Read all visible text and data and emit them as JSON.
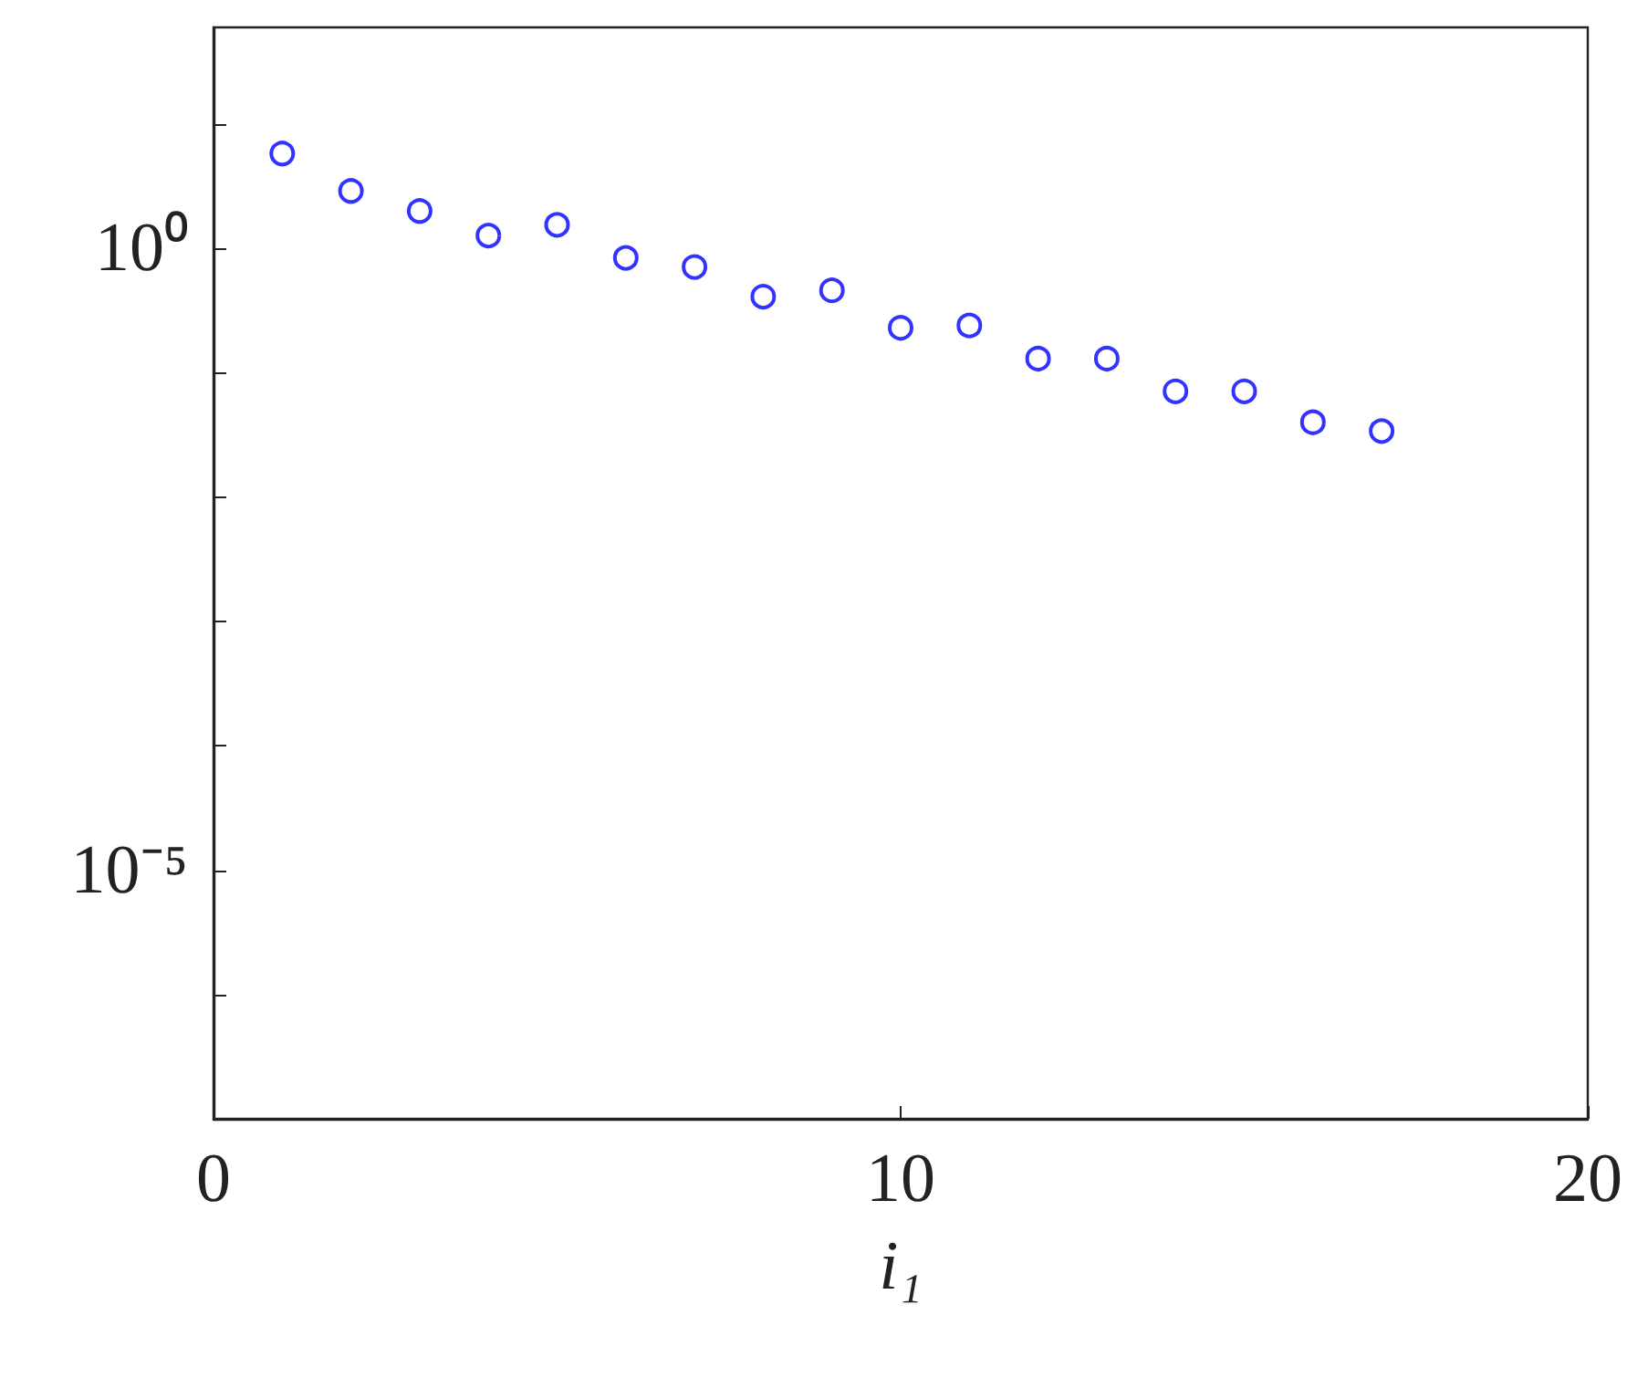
{
  "chart_data": {
    "type": "scatter",
    "xlabel": "i₁",
    "x": [
      1,
      2,
      3,
      4,
      5,
      6,
      7,
      8,
      9,
      10,
      11,
      12,
      13,
      14,
      15,
      16,
      17
    ],
    "series": [
      {
        "color": "#0000ff",
        "values": [
          5.8,
          2.9,
          2.0,
          1.27,
          1.55,
          0.84,
          0.71,
          0.41,
          0.46,
          0.23,
          0.24,
          0.13,
          0.13,
          0.071,
          0.071,
          0.04,
          0.034
        ]
      }
    ],
    "log": "y",
    "xlim": [
      0,
      20
    ],
    "xticks": [
      0,
      10,
      20
    ],
    "ylim": [
      1e-07,
      60
    ],
    "yticks": [
      {
        "value": 1e-06,
        "label": null
      },
      {
        "value": 1e-05,
        "label": "10⁻⁵"
      },
      {
        "value": 0.0001,
        "label": null
      },
      {
        "value": 0.001,
        "label": null
      },
      {
        "value": 0.01,
        "label": null
      },
      {
        "value": 0.1,
        "label": null
      },
      {
        "value": 1,
        "label": "10⁰"
      },
      {
        "value": 10,
        "label": null
      }
    ],
    "marker": "circle",
    "grid": false
  }
}
